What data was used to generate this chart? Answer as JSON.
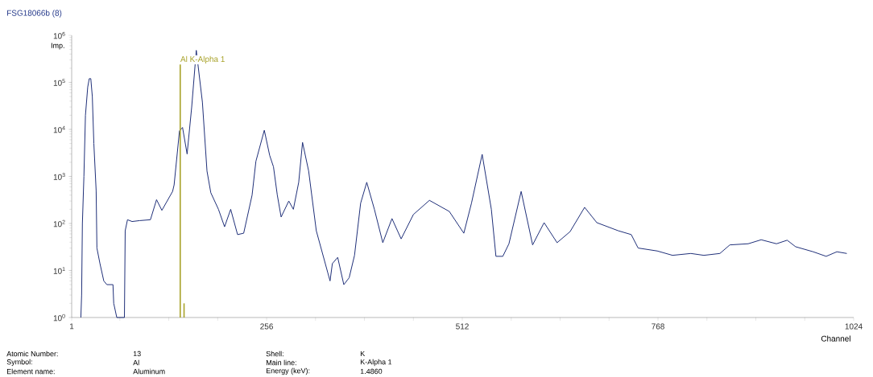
{
  "chart_data": {
    "type": "line",
    "title": "FSG18066b (8)",
    "xlabel": "Channel",
    "ylabel": "Imp.",
    "log": "y",
    "xlim": [
      1,
      1024
    ],
    "ylim": [
      1,
      1000000
    ],
    "xticks": [
      1,
      {
        "value": 64,
        "label": null
      },
      {
        "value": 128,
        "label": null
      },
      {
        "value": 192,
        "label": null
      },
      256,
      {
        "value": 320,
        "label": null
      },
      {
        "value": 384,
        "label": null
      },
      {
        "value": 448,
        "label": null
      },
      512,
      {
        "value": 576,
        "label": null
      },
      {
        "value": 640,
        "label": null
      },
      {
        "value": 704,
        "label": null
      },
      768,
      {
        "value": 832,
        "label": null
      },
      {
        "value": 896,
        "label": null
      },
      {
        "value": 960,
        "label": null
      },
      1024
    ],
    "yticks": [
      {
        "value": 1,
        "label": "10$^{0}$"
      },
      {
        "value": 10,
        "label": "10$^{1}$"
      },
      {
        "value": 100,
        "label": "10$^{2}$"
      },
      {
        "value": 1000,
        "label": "10$^{3}$"
      },
      {
        "value": 10000,
        "label": "10$^{4}$"
      },
      {
        "value": 100000,
        "label": "10$^{5}$"
      },
      {
        "value": 1000000,
        "label": "10$^{6}$"
      }
    ],
    "grid": false,
    "marker": "none",
    "line_style": "solid",
    "series": [
      {
        "color": "#1f2f78",
        "x": [
          13,
          14,
          15,
          17,
          19,
          22,
          24,
          26,
          28,
          30,
          33,
          34,
          38,
          43,
          47,
          55,
          56,
          60,
          70,
          71,
          74,
          80,
          90,
          104,
          112,
          119,
          133,
          135,
          142,
          146,
          152,
          158,
          164,
          172,
          178,
          183,
          193,
          201,
          209,
          218,
          226,
          237,
          242,
          253,
          260,
          265,
          270,
          275,
          285,
          291,
          298,
          303,
          311,
          321,
          336,
          339,
          342,
          349,
          357,
          364,
          371,
          379,
          387,
          397,
          408,
          420,
          432,
          448,
          469,
          495,
          514,
          524,
          538,
          550,
          556,
          565,
          573,
          589,
          604,
          619,
          636,
          653,
          672,
          688,
          716,
          733,
          742,
          767,
          787,
          811,
          828,
          849,
          862,
          886,
          903,
          923,
          937,
          948,
          971,
          988,
          1002,
          1015
        ],
        "values": [
          1,
          3,
          100,
          1000,
          20000,
          80000,
          120000,
          120000,
          50000,
          5000,
          500,
          30,
          14,
          6,
          5,
          5,
          2,
          1,
          1,
          70,
          120,
          110,
          115,
          120,
          320,
          190,
          480,
          660,
          9300,
          11000,
          3000,
          30000,
          480000,
          38000,
          1300,
          450,
          200,
          85,
          200,
          58,
          62,
          400,
          2100,
          9600,
          2800,
          1600,
          400,
          137,
          300,
          200,
          750,
          5300,
          1300,
          70,
          9,
          6,
          14,
          19,
          5,
          7,
          21,
          270,
          750,
          200,
          39,
          127,
          47,
          155,
          310,
          180,
          62,
          270,
          2950,
          200,
          20,
          20,
          37,
          480,
          35,
          104,
          39,
          67,
          220,
          104,
          70,
          58,
          30,
          26,
          21,
          23,
          21,
          23,
          35,
          37,
          45,
          37,
          44,
          32,
          25,
          20,
          25,
          23
        ]
      },
      {
        "type": "bar",
        "color": "#a8a22a",
        "x": [
          143,
          148
        ],
        "values": [
          240000,
          2
        ]
      }
    ],
    "annotations": [
      "Atomic Number:",
      "13",
      "Shell:",
      "K",
      "Symbol:",
      "Al",
      "Main line:",
      "K-Alpha 1",
      "Element name:",
      "Aluminum",
      "Energy (keV):",
      "1.4860",
      {
        "text": "Al K-Alpha 1",
        "x": 143,
        "y": 240000
      }
    ]
  }
}
